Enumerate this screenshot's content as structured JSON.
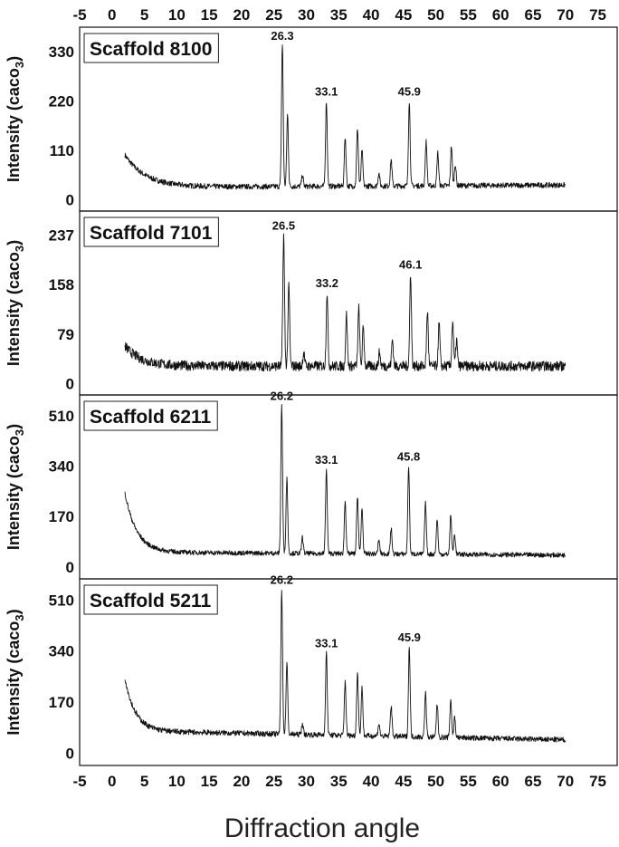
{
  "x_axis": {
    "label": "Diffraction angle",
    "range": [
      -5,
      78
    ],
    "ticks": [
      -5,
      0,
      5,
      10,
      15,
      20,
      25,
      30,
      35,
      40,
      45,
      50,
      55,
      60,
      65,
      70,
      75
    ]
  },
  "chart_data": [
    {
      "type": "line",
      "title": "Scaffold 8100",
      "ylabel": "Intensity (caco3)",
      "yticks": [
        0,
        110,
        220,
        330
      ],
      "ylim": [
        -25,
        385
      ],
      "x_range": [
        2,
        70
      ],
      "baseline": {
        "start": 100,
        "decay": 3.2,
        "floor": 28,
        "end": 33
      },
      "noise": 6,
      "peaks": [
        {
          "x": 26.3,
          "y": 345,
          "label": "26.3"
        },
        {
          "x": 27.1,
          "y": 190
        },
        {
          "x": 29.4,
          "y": 55
        },
        {
          "x": 33.1,
          "y": 220,
          "label": "33.1"
        },
        {
          "x": 36.0,
          "y": 140
        },
        {
          "x": 37.9,
          "y": 160
        },
        {
          "x": 38.6,
          "y": 110
        },
        {
          "x": 41.2,
          "y": 60
        },
        {
          "x": 43.1,
          "y": 90
        },
        {
          "x": 45.9,
          "y": 220,
          "label": "45.9"
        },
        {
          "x": 48.5,
          "y": 130
        },
        {
          "x": 50.3,
          "y": 105
        },
        {
          "x": 52.4,
          "y": 120
        },
        {
          "x": 53.0,
          "y": 80
        }
      ]
    },
    {
      "type": "line",
      "title": "Scaffold 7101",
      "ylabel": "Intensity (caco3)",
      "yticks": [
        0,
        79,
        158,
        237
      ],
      "ylim": [
        -18,
        275
      ],
      "x_range": [
        2,
        70
      ],
      "baseline": {
        "start": 60,
        "decay": 2.5,
        "floor": 28,
        "end": 28
      },
      "noise": 8,
      "peaks": [
        {
          "x": 26.5,
          "y": 237,
          "label": "26.5"
        },
        {
          "x": 27.3,
          "y": 155
        },
        {
          "x": 29.6,
          "y": 50
        },
        {
          "x": 33.2,
          "y": 145,
          "label": "33.2"
        },
        {
          "x": 36.2,
          "y": 110
        },
        {
          "x": 38.1,
          "y": 120
        },
        {
          "x": 38.8,
          "y": 90
        },
        {
          "x": 41.3,
          "y": 50
        },
        {
          "x": 43.3,
          "y": 70
        },
        {
          "x": 46.1,
          "y": 175,
          "label": "46.1"
        },
        {
          "x": 48.7,
          "y": 115
        },
        {
          "x": 50.5,
          "y": 95
        },
        {
          "x": 52.6,
          "y": 100
        },
        {
          "x": 53.2,
          "y": 70
        }
      ]
    },
    {
      "type": "line",
      "title": "Scaffold 6211",
      "ylabel": "Intensity (caco3)",
      "yticks": [
        0,
        170,
        340,
        510
      ],
      "ylim": [
        -40,
        580
      ],
      "x_range": [
        2,
        70
      ],
      "baseline": {
        "start": 250,
        "decay": 1.8,
        "floor": 50,
        "end": 40
      },
      "noise": 8,
      "peaks": [
        {
          "x": 26.2,
          "y": 545,
          "label": "26.2"
        },
        {
          "x": 27.0,
          "y": 300
        },
        {
          "x": 29.4,
          "y": 100
        },
        {
          "x": 33.1,
          "y": 330,
          "label": "33.1"
        },
        {
          "x": 36.0,
          "y": 225
        },
        {
          "x": 37.9,
          "y": 240
        },
        {
          "x": 38.6,
          "y": 200
        },
        {
          "x": 41.2,
          "y": 90
        },
        {
          "x": 43.1,
          "y": 130
        },
        {
          "x": 45.8,
          "y": 340,
          "label": "45.8"
        },
        {
          "x": 48.4,
          "y": 215
        },
        {
          "x": 50.2,
          "y": 160
        },
        {
          "x": 52.3,
          "y": 175
        },
        {
          "x": 52.9,
          "y": 110
        }
      ]
    },
    {
      "type": "line",
      "title": "Scaffold 5211",
      "ylabel": "Intensity (caco3)",
      "yticks": [
        0,
        170,
        340,
        510
      ],
      "ylim": [
        -40,
        580
      ],
      "x_range": [
        2,
        70
      ],
      "baseline": {
        "start": 250,
        "decay": 1.6,
        "floor": 75,
        "end": 45
      },
      "noise": 9,
      "peaks": [
        {
          "x": 26.2,
          "y": 545,
          "label": "26.2"
        },
        {
          "x": 27.0,
          "y": 300
        },
        {
          "x": 29.4,
          "y": 100
        },
        {
          "x": 33.1,
          "y": 335,
          "label": "33.1"
        },
        {
          "x": 36.0,
          "y": 240
        },
        {
          "x": 37.9,
          "y": 270
        },
        {
          "x": 38.6,
          "y": 220
        },
        {
          "x": 41.2,
          "y": 100
        },
        {
          "x": 43.1,
          "y": 160
        },
        {
          "x": 45.9,
          "y": 355,
          "label": "45.9"
        },
        {
          "x": 48.4,
          "y": 200
        },
        {
          "x": 50.2,
          "y": 165
        },
        {
          "x": 52.3,
          "y": 180
        },
        {
          "x": 52.9,
          "y": 120
        }
      ]
    }
  ]
}
